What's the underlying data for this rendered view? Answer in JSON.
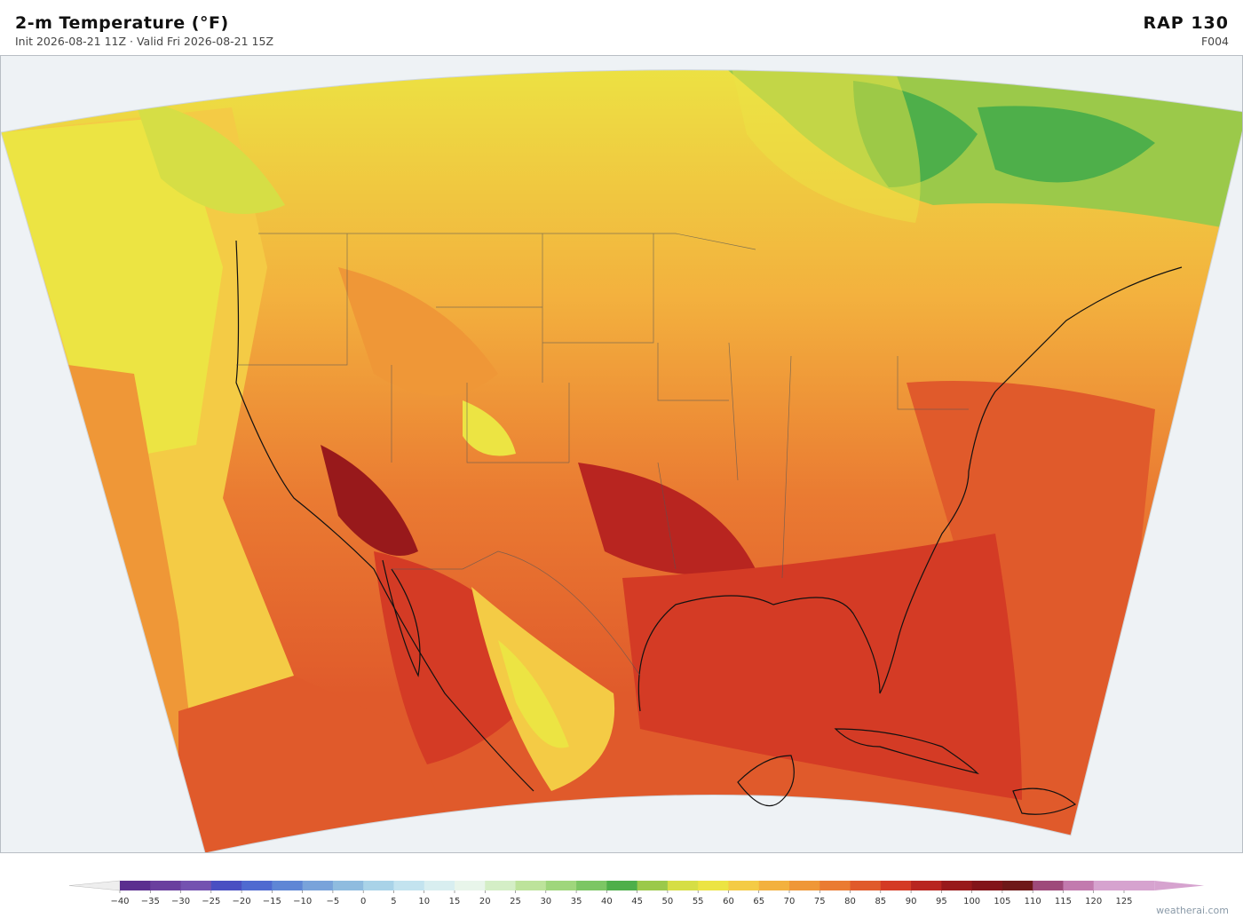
{
  "header": {
    "title": "2-m Temperature  (°F)",
    "subtitle": "Init 2026-08-21 11Z   ·   Valid Fri 2026-08-21 15Z",
    "model": "RAP  130",
    "forecast_hour": "F004"
  },
  "colorbar": {
    "ticks": [
      {
        "value": -40,
        "label": "−40"
      },
      {
        "value": -35,
        "label": "−35"
      },
      {
        "value": -30,
        "label": "−30"
      },
      {
        "value": -25,
        "label": "−25"
      },
      {
        "value": -20,
        "label": "−20"
      },
      {
        "value": -15,
        "label": "−15"
      },
      {
        "value": -10,
        "label": "−10"
      },
      {
        "value": -5,
        "label": "−5"
      },
      0,
      5,
      10,
      15,
      20,
      25,
      30,
      35,
      40,
      45,
      50,
      55,
      60,
      65,
      70,
      75,
      80,
      85,
      90,
      95,
      100,
      105,
      110,
      115,
      120,
      125
    ],
    "colors": [
      "#5b2f8f",
      "#6a3f9e",
      "#7452b0",
      "#4a4fc2",
      "#4f6ad0",
      "#5f86d5",
      "#79a3da",
      "#8fbcdf",
      "#a9d3e8",
      "#c3e3ef",
      "#d8eef0",
      "#e8f5ea",
      "#d4eec6",
      "#bde39b",
      "#9fd67c",
      "#7cc664",
      "#4eaf4a",
      "#9bc94a",
      "#d6de45",
      "#ece443",
      "#f4cb45",
      "#f3b13e",
      "#ef9737",
      "#ea7b32",
      "#e05a2b",
      "#d43b25",
      "#b82520",
      "#98191b",
      "#821419",
      "#6e1818",
      "#9e4a7a",
      "#c27aae",
      "#d6a3cf"
    ],
    "under_color": "#eeeeee",
    "over_color": "#d6a3cf"
  },
  "watermark": "weatherai.com"
}
